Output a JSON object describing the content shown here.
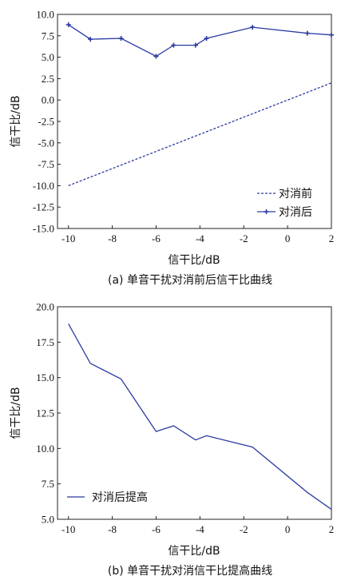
{
  "chart_data": [
    {
      "type": "line",
      "caption": "(a) 单音干扰对消前后信干比曲线",
      "xlabel": "信干比/dB",
      "ylabel": "信干比/dB",
      "xlim": [
        -10.5,
        2
      ],
      "ylim": [
        -15,
        10
      ],
      "xticks": [
        -10,
        -8,
        -6,
        -4,
        -2,
        0,
        2
      ],
      "yticks": [
        -15.0,
        -12.5,
        -10.0,
        -7.5,
        -5.0,
        -2.5,
        0.0,
        2.5,
        5.0,
        7.5,
        10.0
      ],
      "legend_position": "bottom-right",
      "series": [
        {
          "name": "对消前",
          "style": "dashed",
          "marker": "none",
          "color": "#2b3aa0",
          "x": [
            -10,
            2
          ],
          "y": [
            -10,
            2
          ]
        },
        {
          "name": "对消后",
          "style": "solid",
          "marker": "plus",
          "color": "#2b3aa0",
          "x": [
            -10,
            -9,
            -7.6,
            -6,
            -5.2,
            -4.2,
            -3.7,
            -1.6,
            0.9,
            2
          ],
          "y": [
            8.8,
            7.1,
            7.2,
            5.1,
            6.4,
            6.4,
            7.2,
            8.5,
            7.8,
            7.6
          ]
        }
      ]
    },
    {
      "type": "line",
      "caption": "(b) 单音干扰对消信干比提高曲线",
      "xlabel": "信干比/dB",
      "ylabel": "信干比/dB",
      "xlim": [
        -10.5,
        2
      ],
      "ylim": [
        5,
        20
      ],
      "xticks": [
        -10,
        -8,
        -6,
        -4,
        -2,
        0,
        2
      ],
      "yticks": [
        5.0,
        7.5,
        10.0,
        12.5,
        15.0,
        17.5,
        20.0
      ],
      "legend_position": "bottom-left",
      "series": [
        {
          "name": "对消后提高",
          "style": "solid",
          "marker": "none",
          "color": "#2b3aa0",
          "x": [
            -10,
            -9,
            -7.6,
            -6,
            -5.2,
            -4.2,
            -3.7,
            -1.6,
            0.9,
            2
          ],
          "y": [
            18.8,
            16.0,
            14.9,
            11.2,
            11.6,
            10.6,
            10.9,
            10.1,
            6.9,
            5.7
          ]
        }
      ]
    }
  ]
}
